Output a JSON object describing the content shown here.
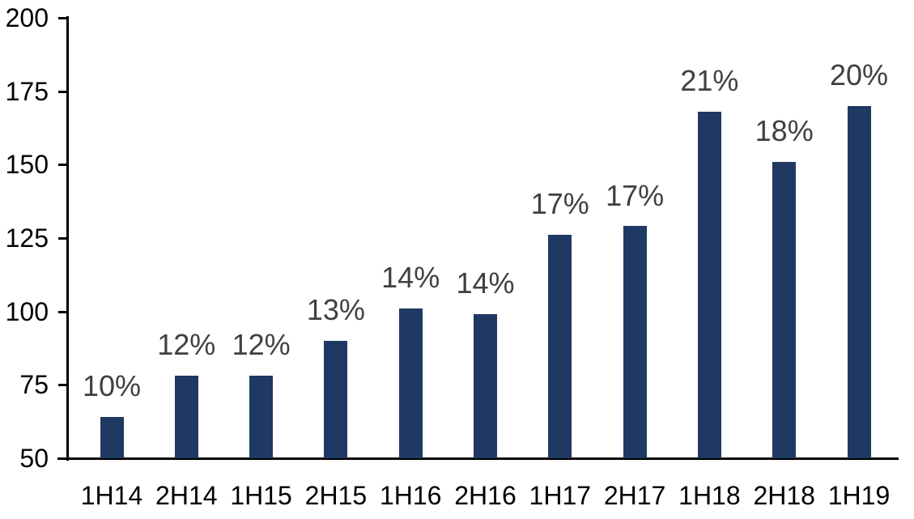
{
  "chart_data": {
    "type": "bar",
    "title": "",
    "categories": [
      "1H14",
      "2H14",
      "1H15",
      "2H15",
      "1H16",
      "2H16",
      "1H17",
      "2H17",
      "1H18",
      "2H18",
      "1H19"
    ],
    "values": [
      64,
      78,
      78,
      90,
      101,
      99,
      126,
      129,
      168,
      151,
      170
    ],
    "bar_labels": [
      "10%",
      "12%",
      "12%",
      "13%",
      "14%",
      "14%",
      "17%",
      "17%",
      "21%",
      "18%",
      "20%"
    ],
    "xlabel": "",
    "ylabel": "",
    "ylim": [
      50,
      200
    ],
    "y_ticks": [
      50,
      75,
      100,
      125,
      150,
      175,
      200
    ],
    "grid": false,
    "legend": "none",
    "colors": {
      "bar_fill": "#1f3864",
      "bar_label_text": "#404040",
      "axis_line": "#000000",
      "axis_label_text": "#000000",
      "background": "#ffffff"
    }
  }
}
